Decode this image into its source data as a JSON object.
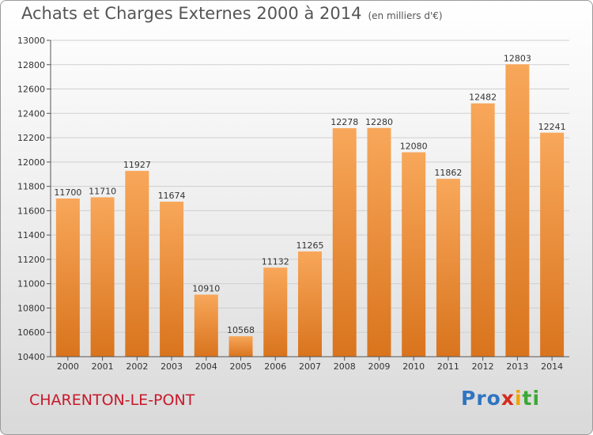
{
  "header": {
    "title": "Achats et Charges Externes 2000 à 2014",
    "unit": "(en milliers d'€)"
  },
  "footer": {
    "city": "CHARENTON-LE-PONT",
    "logo": [
      "Pro",
      "x",
      "i",
      "ti"
    ]
  },
  "chart_data": {
    "type": "bar",
    "title": "Achats et Charges Externes 2000 à 2014",
    "subtitle": "(en milliers d'€)",
    "categories": [
      "2000",
      "2001",
      "2002",
      "2003",
      "2004",
      "2005",
      "2006",
      "2007",
      "2008",
      "2009",
      "2010",
      "2011",
      "2012",
      "2013",
      "2014"
    ],
    "values": [
      11700,
      11710,
      11927,
      11674,
      10910,
      10568,
      11132,
      11265,
      12278,
      12280,
      12080,
      11862,
      12482,
      12803,
      12241
    ],
    "ylim": [
      10400,
      13000
    ],
    "yticks": [
      10400,
      10600,
      10800,
      11000,
      11200,
      11400,
      11600,
      11800,
      12000,
      12200,
      12400,
      12600,
      12800,
      13000
    ],
    "grid": true,
    "colors": {
      "bar_top": "#f8a75a",
      "bar_bottom": "#d9741d",
      "grid": "#cfcfcf"
    }
  }
}
